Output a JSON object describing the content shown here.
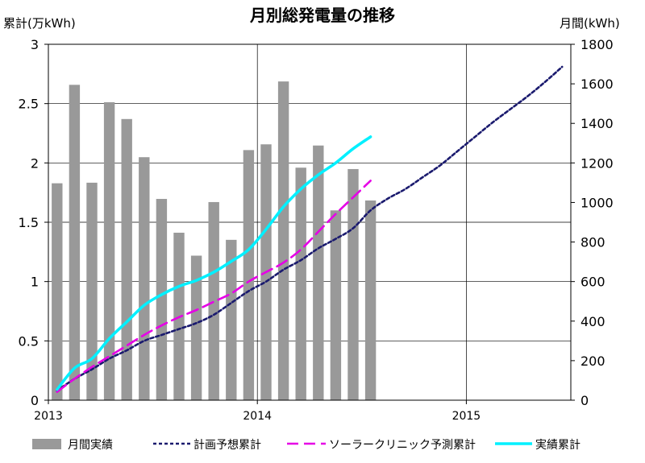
{
  "chart_data": {
    "type": "bar",
    "title": "月別総発電量の推移",
    "left_axis_label": "累計(万kWh)",
    "right_axis_label": "月間(kWh)",
    "left_axis": {
      "min": 0,
      "max": 3,
      "ticks": [
        "0",
        "0.5",
        "1",
        "1.5",
        "2",
        "2.5",
        "3"
      ]
    },
    "right_axis": {
      "min": 0,
      "max": 1800,
      "ticks": [
        "0",
        "200",
        "400",
        "600",
        "800",
        "1000",
        "1200",
        "1400",
        "1600",
        "1800"
      ]
    },
    "x_axis": {
      "ticks": [
        "2013",
        "2014",
        "2015"
      ]
    },
    "grid": true,
    "legend_position": "bottom",
    "legend": [
      "月間実績",
      "計画予想累計",
      "ソーラークリニック予測累計",
      "実績累計"
    ],
    "series": [
      {
        "name": "月間実績",
        "type": "bar",
        "axis": "right",
        "color": "#999999",
        "values": [
          1097,
          1595,
          1100,
          1507,
          1422,
          1229,
          1018,
          847,
          731,
          1002,
          811,
          1265,
          1294,
          1612,
          1176,
          1288,
          960,
          1169,
          1010
        ]
      },
      {
        "name": "計画予想累計",
        "type": "line",
        "style": "short-dash",
        "axis": "left",
        "color": "#1a1a6e",
        "x_months": [
          0,
          1,
          2,
          3,
          4,
          5,
          6,
          7,
          8,
          9,
          10,
          11,
          12,
          13,
          14,
          15,
          16,
          17,
          18,
          19,
          20,
          21,
          22,
          23,
          24,
          25,
          26,
          27,
          28,
          29
        ],
        "values": [
          0.08,
          0.18,
          0.26,
          0.35,
          0.42,
          0.5,
          0.55,
          0.6,
          0.65,
          0.72,
          0.82,
          0.92,
          1.0,
          1.1,
          1.18,
          1.28,
          1.36,
          1.45,
          1.6,
          1.7,
          1.78,
          1.88,
          1.98,
          2.1,
          2.22,
          2.34,
          2.45,
          2.56,
          2.68,
          2.81
        ]
      },
      {
        "name": "ソーラークリニック予測累計",
        "type": "line",
        "style": "long-dash",
        "axis": "left",
        "color": "#e600e6",
        "x_months": [
          0,
          1,
          2,
          3,
          4,
          5,
          6,
          7,
          8,
          9,
          10,
          11,
          12,
          13,
          14,
          15,
          16,
          17,
          18
        ],
        "values": [
          0.07,
          0.18,
          0.28,
          0.37,
          0.46,
          0.55,
          0.63,
          0.7,
          0.76,
          0.83,
          0.9,
          1.0,
          1.08,
          1.16,
          1.27,
          1.42,
          1.57,
          1.71,
          1.85
        ]
      },
      {
        "name": "実績累計",
        "type": "line",
        "style": "solid",
        "axis": "left",
        "color": "#00f0ff",
        "x_months": [
          0,
          1,
          2,
          3,
          4,
          5,
          6,
          7,
          8,
          9,
          10,
          11,
          12,
          13,
          14,
          15,
          16,
          17,
          18
        ],
        "values": [
          0.09,
          0.27,
          0.35,
          0.52,
          0.66,
          0.8,
          0.89,
          0.96,
          1.01,
          1.08,
          1.17,
          1.27,
          1.44,
          1.63,
          1.78,
          1.9,
          2.0,
          2.12,
          2.22
        ]
      }
    ]
  }
}
